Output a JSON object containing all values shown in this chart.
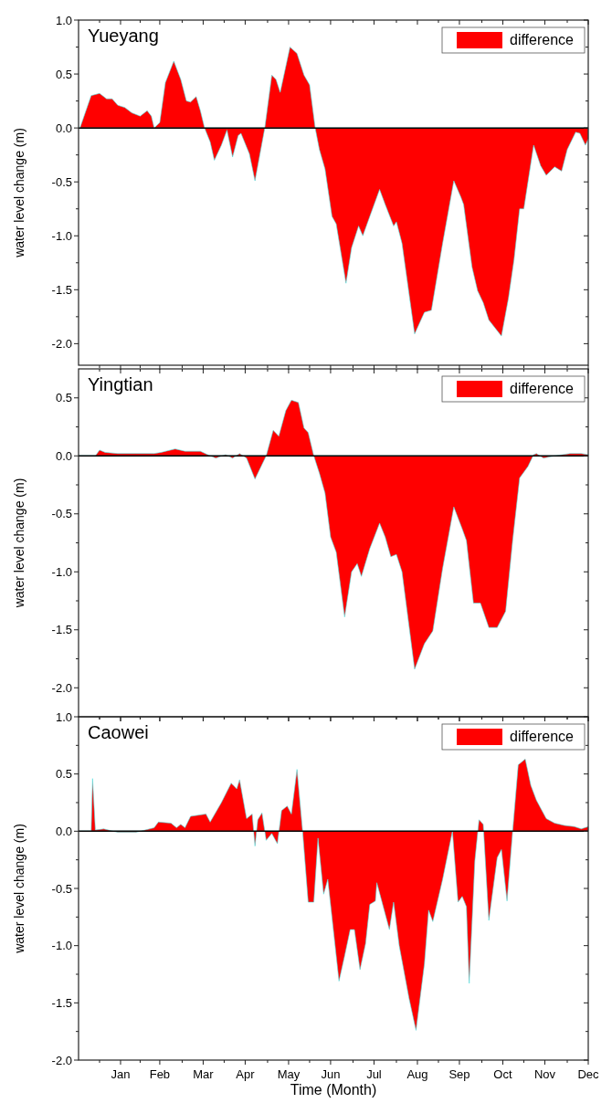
{
  "chart_data": [
    {
      "type": "area",
      "title": "Yueyang",
      "ylabel": "water level change (m)",
      "legend": "top right",
      "tick_labels": "y",
      "xlim": [
        "--01-01",
        "--12-31"
      ],
      "ylim": [
        -2.2,
        1.0
      ],
      "xticks": [
        {
          "value": "--01-16",
          "label": null
        },
        {
          "value": "--01-31",
          "label": null
        },
        {
          "value": "--02-14",
          "label": null
        },
        {
          "value": "--02-28",
          "label": null
        },
        {
          "value": "--03-16",
          "label": null
        },
        {
          "value": "--03-31",
          "label": null
        },
        {
          "value": "--04-15",
          "label": null
        },
        {
          "value": "--04-30",
          "label": null
        },
        {
          "value": "--05-16",
          "label": null
        },
        {
          "value": "--05-31",
          "label": null
        },
        {
          "value": "--06-15",
          "label": null
        },
        {
          "value": "--06-30",
          "label": null
        },
        {
          "value": "--07-16",
          "label": null
        },
        {
          "value": "--07-31",
          "label": null
        },
        {
          "value": "--08-16",
          "label": null
        },
        {
          "value": "--08-31",
          "label": null
        },
        {
          "value": "--09-15",
          "label": null
        },
        {
          "value": "--09-30",
          "label": null
        },
        {
          "value": "--10-16",
          "label": null
        },
        {
          "value": "--10-31",
          "label": null
        },
        {
          "value": "--11-15",
          "label": null
        },
        {
          "value": "--11-30",
          "label": null
        },
        {
          "value": "--12-16",
          "label": null
        },
        {
          "value": "--12-31",
          "label": null
        }
      ],
      "yticks": [
        {
          "value": -2,
          "label": "-2.0"
        },
        {
          "value": -1.75,
          "label": null
        },
        {
          "value": -1.5,
          "label": "-1.5"
        },
        {
          "value": -1.25,
          "label": null
        },
        {
          "value": -1,
          "label": "-1.0"
        },
        {
          "value": -0.75,
          "label": null
        },
        {
          "value": -0.5,
          "label": "-0.5"
        },
        {
          "value": -0.25,
          "label": null
        },
        {
          "value": 0,
          "label": "0.0"
        },
        {
          "value": 0.25,
          "label": null
        },
        {
          "value": 0.5,
          "label": "0.5"
        },
        {
          "value": 0.75,
          "label": null
        },
        {
          "value": 1,
          "label": "1.0"
        }
      ],
      "ref_lines": [
        {
          "axis": "y",
          "value": 0,
          "color": "#000000"
        }
      ],
      "series": [
        {
          "name": "difference",
          "color": "#ff0000",
          "x": [
            "--01-02",
            "--01-10",
            "--01-16",
            "--01-21",
            "--01-25",
            "--01-29",
            "--02-03",
            "--02-08",
            "--02-14",
            "--02-19",
            "--02-22",
            "--02-24",
            "--02-28",
            "--03-04",
            "--03-10",
            "--03-15",
            "--03-19",
            "--03-22",
            "--03-26",
            "--03-29",
            "--04-01",
            "--04-05",
            "--04-08",
            "--04-13",
            "--04-17",
            "--04-21",
            "--04-25",
            "--04-27",
            "--05-03",
            "--05-07",
            "--05-14",
            "--05-19",
            "--05-22",
            "--05-25",
            "--06-01",
            "--06-06",
            "--06-11",
            "--06-15",
            "--06-19",
            "--06-22",
            "--06-26",
            "--07-01",
            "--07-04",
            "--07-11",
            "--07-15",
            "--07-20",
            "--07-23",
            "--07-28",
            "--08-04",
            "--08-08",
            "--08-14",
            "--08-16",
            "--08-20",
            "--08-29",
            "--09-05",
            "--09-10",
            "--09-18",
            "--09-26",
            "--10-01",
            "--10-03",
            "--10-09",
            "--10-13",
            "--10-17",
            "--10-21",
            "--10-30",
            "--11-04",
            "--11-08",
            "--11-12",
            "--11-15",
            "--11-22",
            "--11-27",
            "--12-01",
            "--12-07",
            "--12-12",
            "--12-16",
            "--12-22",
            "--12-25",
            "--12-29",
            "--12-31"
          ],
          "values": [
            0,
            0.3,
            0.32,
            0.27,
            0.27,
            0.21,
            0.19,
            0.14,
            0.11,
            0.16,
            0.11,
            0,
            0.05,
            0.42,
            0.62,
            0.45,
            0.25,
            0.24,
            0.29,
            0.16,
            0,
            -0.13,
            -0.3,
            -0.16,
            -0.02,
            -0.27,
            -0.07,
            -0.05,
            -0.24,
            -0.49,
            0,
            0.49,
            0.45,
            0.33,
            0.75,
            0.69,
            0.49,
            0.4,
            0,
            -0.2,
            -0.38,
            -0.82,
            -0.89,
            -1.44,
            -1.11,
            -0.91,
            -1.0,
            -0.82,
            -0.57,
            -0.71,
            -0.91,
            -0.87,
            -1.07,
            -1.91,
            -1.71,
            -1.69,
            -1.07,
            -0.49,
            -0.64,
            -0.71,
            -1.29,
            -1.51,
            -1.62,
            -1.78,
            -1.93,
            -1.58,
            -1.22,
            -0.75,
            -0.75,
            -0.16,
            -0.35,
            -0.44,
            -0.36,
            -0.4,
            -0.2,
            -0.04,
            -0.05,
            -0.16,
            -0.1
          ]
        }
      ]
    },
    {
      "type": "area",
      "title": "Yingtian",
      "ylabel": "water level change (m)",
      "legend": "top right",
      "tick_labels": "y",
      "xlim": [
        "--01-01",
        "--12-31"
      ],
      "ylim": [
        -2.25,
        0.75
      ],
      "xticks": [
        {
          "value": "--01-16",
          "label": null
        },
        {
          "value": "--01-31",
          "label": null
        },
        {
          "value": "--02-14",
          "label": null
        },
        {
          "value": "--02-28",
          "label": null
        },
        {
          "value": "--03-16",
          "label": null
        },
        {
          "value": "--03-31",
          "label": null
        },
        {
          "value": "--04-15",
          "label": null
        },
        {
          "value": "--04-30",
          "label": null
        },
        {
          "value": "--05-16",
          "label": null
        },
        {
          "value": "--05-31",
          "label": null
        },
        {
          "value": "--06-15",
          "label": null
        },
        {
          "value": "--06-30",
          "label": null
        },
        {
          "value": "--07-16",
          "label": null
        },
        {
          "value": "--07-31",
          "label": null
        },
        {
          "value": "--08-16",
          "label": null
        },
        {
          "value": "--08-31",
          "label": null
        },
        {
          "value": "--09-15",
          "label": null
        },
        {
          "value": "--09-30",
          "label": null
        },
        {
          "value": "--10-16",
          "label": null
        },
        {
          "value": "--10-31",
          "label": null
        },
        {
          "value": "--11-15",
          "label": null
        },
        {
          "value": "--11-30",
          "label": null
        },
        {
          "value": "--12-16",
          "label": null
        },
        {
          "value": "--12-31",
          "label": null
        }
      ],
      "yticks": [
        {
          "value": -2,
          "label": "-2.0"
        },
        {
          "value": -1.75,
          "label": null
        },
        {
          "value": -1.5,
          "label": "-1.5"
        },
        {
          "value": -1.25,
          "label": null
        },
        {
          "value": -1,
          "label": "-1.0"
        },
        {
          "value": -0.75,
          "label": null
        },
        {
          "value": -0.5,
          "label": "-0.5"
        },
        {
          "value": -0.25,
          "label": null
        },
        {
          "value": 0,
          "label": "0.0"
        },
        {
          "value": 0.25,
          "label": null
        },
        {
          "value": 0.5,
          "label": "0.5"
        }
      ],
      "ref_lines": [
        {
          "axis": "y",
          "value": 0,
          "color": "#000000"
        }
      ],
      "series": [
        {
          "name": "difference",
          "color": "#ff0000",
          "x": [
            "--01-01",
            "--01-13",
            "--01-16",
            "--01-20",
            "--01-29",
            "--02-11",
            "--02-24",
            "--03-01",
            "--03-11",
            "--03-18",
            "--03-29",
            "--04-05",
            "--04-09",
            "--04-16",
            "--04-21",
            "--04-26",
            "--05-01",
            "--05-07",
            "--05-15",
            "--05-20",
            "--05-24",
            "--05-29",
            "--06-02",
            "--06-07",
            "--06-11",
            "--06-14",
            "--06-18",
            "--06-22",
            "--06-26",
            "--06-30",
            "--07-04",
            "--07-10",
            "--07-15",
            "--07-19",
            "--07-22",
            "--07-28",
            "--08-04",
            "--08-08",
            "--08-12",
            "--08-16",
            "--08-20",
            "--08-29",
            "--09-05",
            "--09-11",
            "--09-18",
            "--09-26",
            "--10-02",
            "--10-05",
            "--10-10",
            "--10-15",
            "--10-21",
            "--10-27",
            "--11-02",
            "--11-07",
            "--11-12",
            "--11-18",
            "--11-22",
            "--11-24",
            "--11-29",
            "--12-07",
            "--12-18",
            "--12-26",
            "--12-31"
          ],
          "values": [
            0,
            0,
            0.05,
            0.03,
            0.02,
            0.02,
            0.02,
            0.03,
            0.06,
            0.04,
            0.04,
            0,
            -0.02,
            0.01,
            -0.02,
            0.02,
            -0.02,
            -0.2,
            0,
            0.22,
            0.17,
            0.39,
            0.48,
            0.46,
            0.24,
            0.2,
            0,
            -0.15,
            -0.32,
            -0.7,
            -0.83,
            -1.39,
            -1.0,
            -0.93,
            -1.04,
            -0.8,
            -0.58,
            -0.7,
            -0.87,
            -0.85,
            -1.0,
            -1.84,
            -1.62,
            -1.51,
            -0.97,
            -0.44,
            -0.63,
            -0.73,
            -1.27,
            -1.27,
            -1.48,
            -1.48,
            -1.34,
            -0.73,
            -0.19,
            -0.09,
            0.01,
            0.02,
            -0.02,
            0,
            0.02,
            0.02,
            0.01
          ]
        }
      ]
    },
    {
      "type": "area",
      "title": "Caowei",
      "ylabel": "water level change (m)",
      "xlabel": "Time (Month)",
      "legend": "top right",
      "xlim": [
        "--01-01",
        "--12-31"
      ],
      "ylim": [
        -2.0,
        1.0
      ],
      "xticks": [
        {
          "value": "--01-16",
          "label": null
        },
        {
          "value": "--01-31",
          "label": "Jan"
        },
        {
          "value": "--02-14",
          "label": null
        },
        {
          "value": "--02-28",
          "label": "Feb"
        },
        {
          "value": "--03-16",
          "label": null
        },
        {
          "value": "--03-31",
          "label": "Mar"
        },
        {
          "value": "--04-15",
          "label": null
        },
        {
          "value": "--04-30",
          "label": "Apr"
        },
        {
          "value": "--05-16",
          "label": null
        },
        {
          "value": "--05-31",
          "label": "May"
        },
        {
          "value": "--06-15",
          "label": null
        },
        {
          "value": "--06-30",
          "label": "Jun"
        },
        {
          "value": "--07-16",
          "label": null
        },
        {
          "value": "--07-31",
          "label": "Jul"
        },
        {
          "value": "--08-16",
          "label": null
        },
        {
          "value": "--08-31",
          "label": "Aug"
        },
        {
          "value": "--09-15",
          "label": null
        },
        {
          "value": "--09-30",
          "label": "Sep"
        },
        {
          "value": "--10-16",
          "label": null
        },
        {
          "value": "--10-31",
          "label": "Oct"
        },
        {
          "value": "--11-15",
          "label": null
        },
        {
          "value": "--11-30",
          "label": "Nov"
        },
        {
          "value": "--12-16",
          "label": null
        },
        {
          "value": "--12-31",
          "label": "Dec"
        }
      ],
      "yticks": [
        {
          "value": -2,
          "label": "-2.0"
        },
        {
          "value": -1.75,
          "label": null
        },
        {
          "value": -1.5,
          "label": "-1.5"
        },
        {
          "value": -1.25,
          "label": null
        },
        {
          "value": -1,
          "label": "-1.0"
        },
        {
          "value": -0.75,
          "label": null
        },
        {
          "value": -0.5,
          "label": "-0.5"
        },
        {
          "value": -0.25,
          "label": null
        },
        {
          "value": 0,
          "label": "0.0"
        },
        {
          "value": 0.25,
          "label": null
        },
        {
          "value": 0.5,
          "label": "0.5"
        },
        {
          "value": 0.75,
          "label": null
        },
        {
          "value": 1,
          "label": "1.0"
        }
      ],
      "ref_lines": [
        {
          "axis": "y",
          "value": 0,
          "color": "#000000"
        }
      ],
      "series": [
        {
          "name": "difference",
          "color": "#ff0000",
          "x": [
            "--01-01",
            "--01-10",
            "--01-11",
            "--01-13",
            "--01-19",
            "--01-29",
            "--02-11",
            "--02-24",
            "--02-27",
            "--03-08",
            "--03-12",
            "--03-15",
            "--03-18",
            "--03-22",
            "--04-02",
            "--04-05",
            "--04-13",
            "--04-20",
            "--04-24",
            "--04-26",
            "--05-01",
            "--05-05",
            "--05-07",
            "--05-09",
            "--05-12",
            "--05-15",
            "--05-19",
            "--05-23",
            "--05-26",
            "--05-30",
            "--06-02",
            "--06-06",
            "--06-10",
            "--06-14",
            "--06-18",
            "--06-21",
            "--06-25",
            "--06-28",
            "--07-06",
            "--07-10",
            "--07-14",
            "--07-17",
            "--07-21",
            "--07-25",
            "--07-28",
            "--08-01",
            "--08-02",
            "--08-11",
            "--08-14",
            "--08-18",
            "--08-25",
            "--08-30",
            "--09-05",
            "--09-08",
            "--09-11",
            "--09-18",
            "--09-25",
            "--09-29",
            "--10-02",
            "--10-05",
            "--10-07",
            "--10-11",
            "--10-14",
            "--10-17",
            "--10-21",
            "--10-27",
            "--10-30",
            "--11-03",
            "--11-07",
            "--11-11",
            "--11-16",
            "--11-20",
            "--11-24",
            "--12-01",
            "--12-07",
            "--12-14",
            "--12-21",
            "--12-26",
            "--12-31"
          ],
          "values": [
            0,
            0,
            0.46,
            0.01,
            0.02,
            -0.01,
            -0.01,
            0.03,
            0.08,
            0.07,
            0.03,
            0.06,
            0.03,
            0.13,
            0.15,
            0.08,
            0.25,
            0.42,
            0.37,
            0.45,
            0.11,
            0.15,
            -0.13,
            0.1,
            0.16,
            -0.08,
            -0.02,
            -0.11,
            0.18,
            0.22,
            0.15,
            0.54,
            0,
            -0.62,
            -0.62,
            -0.06,
            -0.55,
            -0.42,
            -1.31,
            -1.09,
            -0.86,
            -0.86,
            -1.21,
            -0.98,
            -0.64,
            -0.61,
            -0.45,
            -0.86,
            -0.62,
            -1.0,
            -1.46,
            -1.74,
            -1.16,
            -0.69,
            -0.79,
            -0.42,
            0,
            -0.62,
            -0.57,
            -0.66,
            -1.33,
            -0.26,
            0.1,
            0.06,
            -0.78,
            -0.23,
            -0.16,
            -0.61,
            0,
            0.58,
            0.63,
            0.4,
            0.27,
            0.11,
            0.07,
            0.05,
            0.04,
            0.02,
            0.04
          ]
        }
      ]
    }
  ]
}
